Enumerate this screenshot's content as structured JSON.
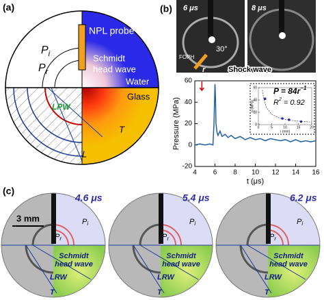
{
  "panel_a": {
    "label": "(a)",
    "probe": "NPL probe",
    "head_wave": [
      "Schmidt",
      "head wave"
    ],
    "water": "Water",
    "glass": "Glass",
    "pi": {
      "symbol": "P",
      "sub": "i"
    },
    "pr": {
      "symbol": "P",
      "sub": "r"
    },
    "lpw": "LPW",
    "t": "T",
    "l": "L"
  },
  "panel_b": {
    "label": "(b)",
    "frame_times": [
      "6 μs",
      "8 μs"
    ],
    "angle": "30°",
    "foph": "FOPH",
    "r": "r",
    "shock_wave": "Shock wave",
    "plot": {
      "type": "line",
      "x_label": "t (μs)",
      "y_label": "Pressure (MPa)",
      "xlim": [
        4,
        16
      ],
      "xticks": [
        4,
        6,
        8,
        10,
        12,
        14,
        16
      ],
      "ylim": [
        -20,
        60
      ],
      "yticks": [
        -20,
        0,
        20,
        40,
        60
      ],
      "x": [
        4,
        4.5,
        5,
        5.5,
        5.8,
        5.9,
        6,
        6.05,
        6.1,
        6.2,
        6.3,
        6.5,
        6.7,
        7,
        7.3,
        7.6,
        8,
        8.5,
        9,
        9.5,
        10,
        10.5,
        11,
        11.5,
        12,
        12.5,
        13,
        13.5,
        14,
        14.5,
        15,
        15.5,
        16
      ],
      "series": [
        {
          "name": "Pressure",
          "color": "#1f5fa8",
          "values": [
            0,
            1,
            0,
            1,
            0,
            20,
            57,
            45,
            20,
            12,
            9,
            13,
            8,
            10,
            7,
            9,
            6,
            8,
            5,
            7,
            5,
            6,
            4,
            6,
            5,
            4,
            5,
            3,
            5,
            3,
            4,
            3,
            4
          ]
        }
      ],
      "inset": {
        "x_label": "r (mm)",
        "y_label": "p (MPa)",
        "equation": "P = 84r",
        "equation_exp": "−1",
        "r_squared": "R",
        "r_squared_rest": "2",
        "r_squared_value": " = 0.92",
        "xlim": [
          0,
          20
        ],
        "xticks": [
          0,
          5,
          10,
          15,
          20
        ],
        "ylim": [
          0,
          60
        ],
        "yticks": [
          0,
          20,
          40,
          60
        ],
        "x": [
          2.5,
          9,
          11.5,
          16
        ],
        "values": [
          42,
          10,
          8,
          5
        ],
        "fit_x": [
          1.5,
          2,
          3,
          5,
          8,
          12,
          16,
          20
        ],
        "fit_values": [
          56,
          42,
          28,
          16.8,
          10.5,
          7,
          5.25,
          4.2
        ]
      }
    }
  },
  "panel_c": {
    "label": "(c)",
    "scale": "3 mm",
    "frames": [
      {
        "time": "4.6 μs",
        "pi": {
          "symbol": "P",
          "sub": "i"
        },
        "pr": {
          "symbol": "P",
          "sub": "r"
        },
        "head_wave": [
          "Schmidt",
          "head wave"
        ],
        "lrw": "LRW",
        "t": "T"
      },
      {
        "time": "5.4 μs",
        "pi": {
          "symbol": "P",
          "sub": "i"
        },
        "pr": {
          "symbol": "P",
          "sub": "r"
        },
        "head_wave": [
          "Schmidt",
          "head wave"
        ],
        "lrw": "LRW",
        "t": "T"
      },
      {
        "time": "6.2 μs",
        "pi": {
          "symbol": "P",
          "sub": "i"
        },
        "pr": {
          "symbol": "P",
          "sub": "r"
        },
        "head_wave": [
          "Schmidt",
          "head wave"
        ],
        "lrw": "LRW",
        "t": "T"
      }
    ]
  }
}
